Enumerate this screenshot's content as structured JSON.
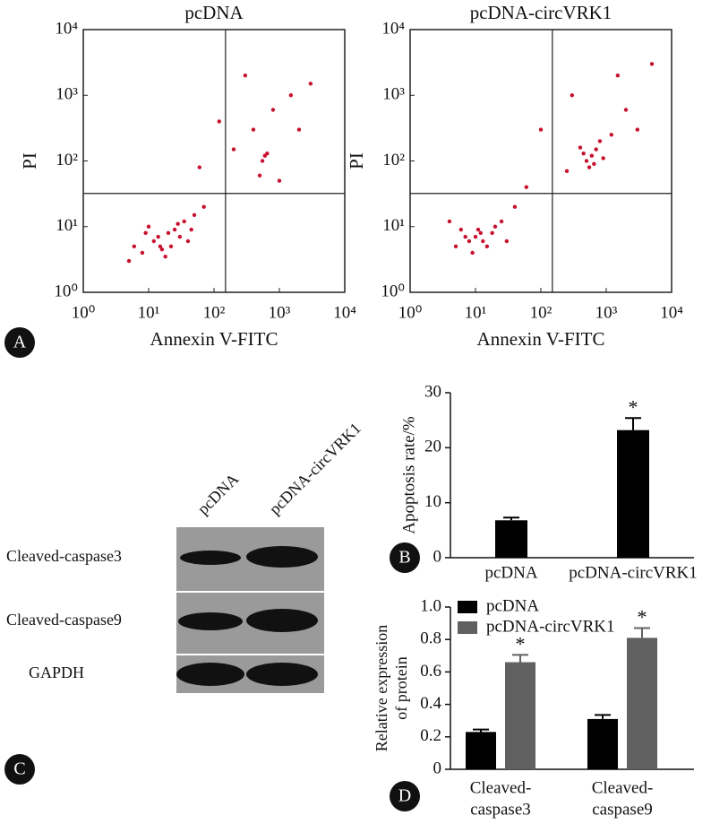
{
  "chart_data": [
    {
      "type": "scatter",
      "title": "pcDNA",
      "xlabel": "Annexin V-FITC",
      "ylabel": "PI",
      "log_scale": true,
      "color": "#c8102e",
      "xlim": [
        1,
        10000
      ],
      "ylim": [
        1,
        10000
      ],
      "xticks": [
        {
          "value": 1,
          "label": "10⁰"
        },
        {
          "value": 10,
          "label": "10¹"
        },
        {
          "value": 100,
          "label": "10²"
        },
        {
          "value": 1000,
          "label": "10³"
        },
        {
          "value": 10000,
          "label": "10⁴"
        }
      ],
      "yticks": [
        {
          "value": 1,
          "label": "10⁰"
        },
        {
          "value": 10,
          "label": "10¹"
        },
        {
          "value": 100,
          "label": "10²"
        },
        {
          "value": 1000,
          "label": "10³"
        },
        {
          "value": 10000,
          "label": "10⁴"
        }
      ],
      "gates": {
        "x": 150,
        "y": 32
      },
      "x": [
        12,
        20,
        8,
        15,
        25,
        30,
        10,
        18,
        6,
        35,
        40,
        14,
        22,
        9,
        28,
        16,
        50,
        70,
        200,
        400,
        600,
        550,
        650,
        800,
        1500,
        300,
        2000,
        1000,
        60,
        120,
        3000,
        500,
        5,
        45
      ],
      "y": [
        6,
        8,
        4,
        5,
        9,
        7,
        10,
        3.5,
        5,
        12,
        6,
        7,
        5,
        8,
        11,
        4.5,
        15,
        20,
        150,
        300,
        120,
        100,
        130,
        600,
        1000,
        2000,
        300,
        50,
        80,
        400,
        1500,
        60,
        3,
        9
      ]
    },
    {
      "type": "scatter",
      "title": "pcDNA-circVRK1",
      "xlabel": "Annexin V-FITC",
      "ylabel": "PI",
      "log_scale": true,
      "color": "#c8102e",
      "xlim": [
        1,
        10000
      ],
      "ylim": [
        1,
        10000
      ],
      "xticks": [
        {
          "value": 1,
          "label": "10⁰"
        },
        {
          "value": 10,
          "label": "10¹"
        },
        {
          "value": 100,
          "label": "10²"
        },
        {
          "value": 1000,
          "label": "10³"
        },
        {
          "value": 10000,
          "label": "10⁴"
        }
      ],
      "yticks": [
        {
          "value": 1,
          "label": "10⁰"
        },
        {
          "value": 10,
          "label": "10¹"
        },
        {
          "value": 100,
          "label": "10²"
        },
        {
          "value": 1000,
          "label": "10³"
        },
        {
          "value": 10000,
          "label": "10⁴"
        }
      ],
      "gates": {
        "x": 150,
        "y": 32
      },
      "x": [
        10,
        8,
        12,
        15,
        6,
        20,
        9,
        13,
        25,
        7,
        11,
        30,
        5,
        18,
        600,
        500,
        700,
        650,
        450,
        800,
        550,
        900,
        400,
        1200,
        2000,
        300,
        3000,
        1500,
        60,
        100,
        40,
        5000,
        250,
        4
      ],
      "y": [
        7,
        6,
        8,
        5,
        9,
        10,
        4,
        6,
        12,
        7,
        9,
        6,
        5,
        8,
        120,
        100,
        150,
        90,
        130,
        200,
        80,
        110,
        160,
        250,
        600,
        1000,
        300,
        2000,
        40,
        300,
        20,
        3000,
        70,
        12
      ]
    },
    {
      "type": "bar",
      "ylabel": "Apoptosis rate/%",
      "categories": [
        "pcDNA",
        "pcDNA-circVRK1"
      ],
      "values": [
        6.8,
        23.2
      ],
      "errors": [
        0.5,
        2.2
      ],
      "significance": [
        null,
        "*"
      ],
      "color": "#000000",
      "ylim": [
        0,
        30
      ],
      "yticks": [
        0,
        10,
        20,
        30
      ]
    },
    {
      "type": "grouped_bar",
      "ylabel": [
        "Relative expression",
        "of protein"
      ],
      "categories": [
        [
          "Cleaved-",
          "caspase3"
        ],
        [
          "Cleaved-",
          "caspase9"
        ]
      ],
      "series": [
        {
          "name": "pcDNA",
          "color": "#000000",
          "values": [
            0.23,
            0.31
          ],
          "errors": [
            0.015,
            0.025
          ]
        },
        {
          "name": "pcDNA-circVRK1",
          "color": "#606060",
          "values": [
            0.66,
            0.81
          ],
          "errors": [
            0.045,
            0.06
          ],
          "significance": [
            "*",
            "*"
          ]
        }
      ],
      "ylim": [
        0,
        1
      ],
      "yticks": [
        0,
        0.2,
        0.4,
        0.6,
        0.8,
        {
          "value": 1,
          "label": "1.0"
        }
      ],
      "legend": "top-left"
    }
  ],
  "blot": {
    "lanes": [
      "pcDNA",
      "pcDNA-circVRK1"
    ],
    "rows": [
      "Cleaved-caspase3",
      "Cleaved-caspase9",
      "GAPDH"
    ]
  },
  "panel_labels": [
    "A",
    "B",
    "C",
    "D"
  ]
}
